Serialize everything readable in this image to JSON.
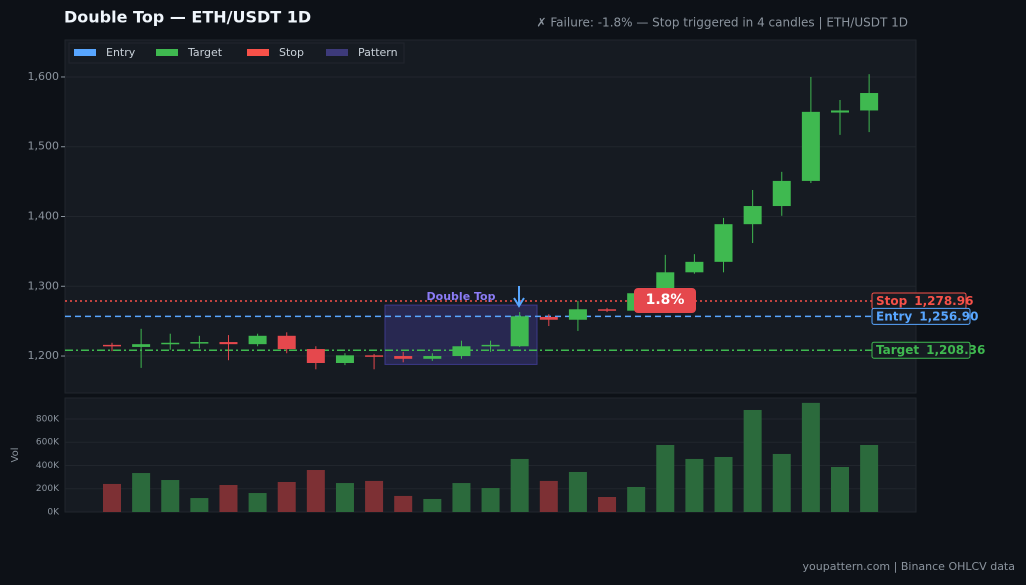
{
  "title": "Double Top  —  ETH/USDT 1D",
  "subtitle": "✗ Failure: -1.8% — Stop triggered in 4 candles  |  ETH/USDT 1D",
  "footer": "youpattern.com  |  Binance OHLCV data",
  "chart_data": [
    {
      "type": "candlestick",
      "open": [
        1216,
        1213,
        1217,
        1219,
        1220,
        1217,
        1229,
        1210,
        1190,
        1201,
        1200,
        1196,
        1200,
        1214,
        1214,
        1256,
        1252,
        1267,
        1265,
        1286,
        1320,
        1335,
        1389,
        1415,
        1451,
        1549,
        1552
      ],
      "high": [
        1219,
        1239,
        1232,
        1229,
        1230,
        1232,
        1234,
        1214,
        1204,
        1203,
        1206,
        1204,
        1222,
        1222,
        1263,
        1260,
        1279,
        1269,
        1292,
        1345,
        1346,
        1398,
        1438,
        1464,
        1600,
        1567,
        1604
      ],
      "low": [
        1207,
        1183,
        1209,
        1211,
        1194,
        1214,
        1204,
        1181,
        1187,
        1181,
        1191,
        1193,
        1196,
        1206,
        1213,
        1243,
        1236,
        1263,
        1263,
        1283,
        1318,
        1320,
        1362,
        1401,
        1448,
        1517,
        1521
      ],
      "close": [
        1214,
        1217,
        1219,
        1220,
        1217,
        1229,
        1210,
        1190,
        1201,
        1199,
        1196,
        1200,
        1214,
        1216,
        1257,
        1252,
        1267,
        1265,
        1290,
        1320,
        1335,
        1389,
        1415,
        1451,
        1550,
        1552,
        1577
      ],
      "up_color": "#3fb950",
      "down_color": "#e5484d",
      "ylim": [
        1147,
        1653
      ],
      "yticks": [
        {
          "value": 1200,
          "label": "1,200"
        },
        {
          "value": 1300,
          "label": "1,300"
        },
        {
          "value": 1400,
          "label": "1,400"
        },
        {
          "value": 1500,
          "label": "1,500"
        },
        {
          "value": 1600,
          "label": "1,600"
        }
      ],
      "grid": true,
      "levels": [
        {
          "name": "Stop",
          "value": 1278.96,
          "label": "1,278.96",
          "color": "#f85149"
        },
        {
          "name": "Entry",
          "value": 1256.9,
          "label": "1,256.90",
          "color": "#58a6ff"
        },
        {
          "name": "Target",
          "value": 1208.36,
          "label": "1,208.36",
          "color": "#3fb950"
        }
      ],
      "pattern": {
        "label": "Double Top",
        "low": 1188,
        "high": 1273,
        "color": "#8b7cf6"
      },
      "change_label": "1.8%",
      "legend": [
        {
          "name": "Entry",
          "color": "#58a6ff"
        },
        {
          "name": "Target",
          "color": "#3fb950"
        },
        {
          "name": "Stop",
          "color": "#f85149"
        },
        {
          "name": "Pattern",
          "color": "#3d3a7a"
        }
      ]
    },
    {
      "type": "bar",
      "ylabel": "Vol",
      "values": [
        241000,
        335000,
        275000,
        120000,
        232000,
        163000,
        258000,
        361000,
        249000,
        267000,
        138000,
        112000,
        249000,
        206000,
        456000,
        267000,
        344000,
        129000,
        215000,
        576000,
        456000,
        473000,
        877000,
        499000,
        938000,
        387000,
        576000
      ],
      "up_color": "#2b6a3c",
      "down_color": "#7d3034",
      "ylim": [
        0,
        980000
      ],
      "yticks": [
        {
          "value": 0,
          "label": "0K"
        },
        {
          "value": 200000,
          "label": "200K"
        },
        {
          "value": 400000,
          "label": "400K"
        },
        {
          "value": 600000,
          "label": "600K"
        },
        {
          "value": 800000,
          "label": "800K"
        }
      ]
    }
  ]
}
